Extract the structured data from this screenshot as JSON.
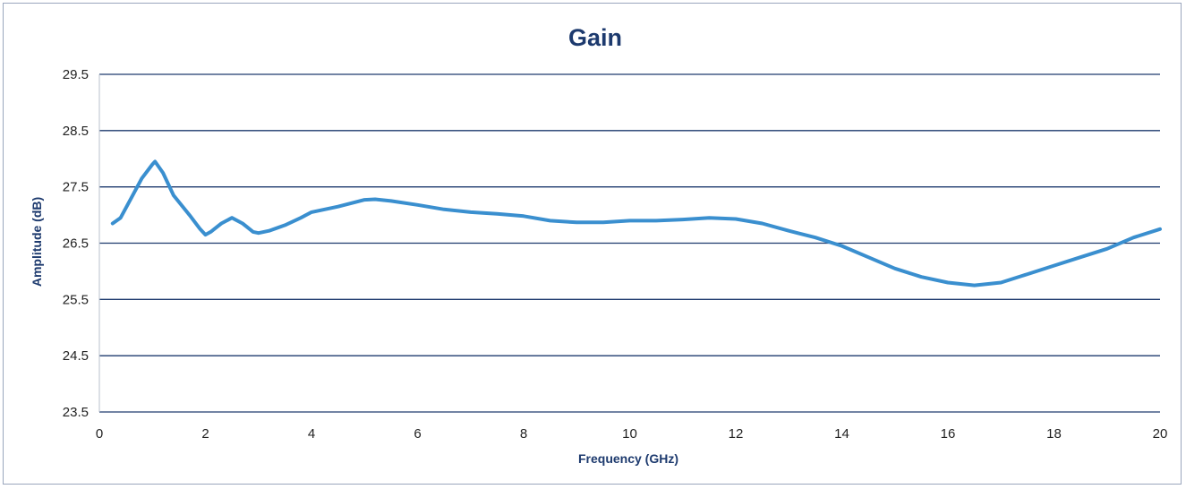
{
  "chart_data": {
    "type": "line",
    "title": "Gain",
    "xlabel": "Frequency (GHz)",
    "ylabel": "Amplitude (dB)",
    "xlim": [
      0,
      20
    ],
    "ylim": [
      23.5,
      29.5
    ],
    "xticks": [
      "0",
      "2",
      "4",
      "6",
      "8",
      "10",
      "12",
      "14",
      "16",
      "18",
      "20"
    ],
    "yticks": [
      "23.5",
      "24.5",
      "25.5",
      "26.5",
      "27.5",
      "28.5",
      "29.5"
    ],
    "grid": "horizontal",
    "legend": "none",
    "colors": {
      "line": "#3a8fcf",
      "grid": "#1d3a6e",
      "title": "#1d3a6e"
    },
    "series": [
      {
        "x": [
          0.25,
          0.4,
          0.6,
          0.8,
          1.0,
          1.05,
          1.2,
          1.4,
          1.7,
          1.9,
          2.0,
          2.1,
          2.3,
          2.5,
          2.7,
          2.9,
          3.0,
          3.2,
          3.5,
          3.8,
          4.0,
          4.5,
          5.0,
          5.2,
          5.5,
          6.0,
          6.5,
          7.0,
          7.5,
          8.0,
          8.5,
          9.0,
          9.5,
          10.0,
          10.5,
          11.0,
          11.5,
          12.0,
          12.5,
          13.0,
          13.5,
          14.0,
          14.5,
          15.0,
          15.5,
          16.0,
          16.5,
          17.0,
          17.5,
          18.0,
          18.5,
          19.0,
          19.5,
          20.0
        ],
        "y": [
          26.85,
          26.95,
          27.3,
          27.65,
          27.9,
          27.95,
          27.75,
          27.35,
          27.0,
          26.75,
          26.65,
          26.7,
          26.85,
          26.95,
          26.85,
          26.7,
          26.68,
          26.72,
          26.82,
          26.95,
          27.05,
          27.15,
          27.27,
          27.28,
          27.25,
          27.18,
          27.1,
          27.05,
          27.02,
          26.98,
          26.9,
          26.87,
          26.87,
          26.9,
          26.9,
          26.92,
          26.95,
          26.93,
          26.85,
          26.72,
          26.6,
          26.45,
          26.25,
          26.05,
          25.9,
          25.8,
          25.75,
          25.8,
          25.95,
          26.1,
          26.25,
          26.4,
          26.6,
          26.75
        ]
      }
    ]
  }
}
